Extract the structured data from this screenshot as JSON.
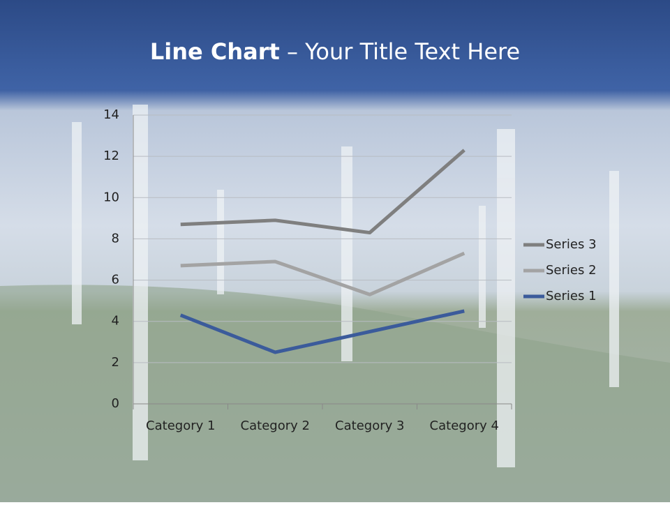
{
  "slide": {
    "title_bold": "Line Chart",
    "title_rest": "– Your Title Text Here"
  },
  "chart_data": {
    "type": "line",
    "stacked": true,
    "categories": [
      "Category 1",
      "Category 2",
      "Category 3",
      "Category 4"
    ],
    "series": [
      {
        "name": "Series 1",
        "color": "#3b5b9b",
        "values": [
          4.3,
          2.5,
          3.5,
          4.5
        ]
      },
      {
        "name": "Series 2",
        "color": "#a3a3a3",
        "values": [
          2.4,
          4.4,
          1.8,
          2.8
        ]
      },
      {
        "name": "Series 3",
        "color": "#7f7f7f",
        "values": [
          2,
          2,
          3,
          5
        ]
      }
    ],
    "ylim": [
      0,
      14
    ],
    "yticks": [
      0,
      2,
      4,
      6,
      8,
      10,
      12,
      14
    ],
    "grid": true,
    "legend": "right"
  }
}
